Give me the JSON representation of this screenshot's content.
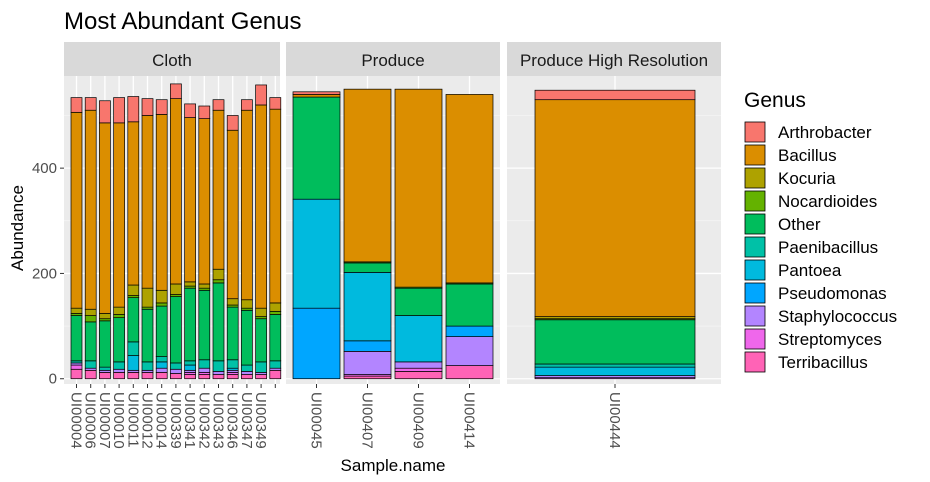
{
  "chart_data": {
    "type": "bar",
    "stacked": true,
    "title": "Most Abundant Genus",
    "xlabel": "Sample.name",
    "ylabel": "Abundance",
    "ylim": [
      -10,
      575
    ],
    "yticks": [
      0,
      200,
      400
    ],
    "legend": {
      "title": "Genus",
      "placement": "right",
      "entries": [
        {
          "name": "Arthrobacter",
          "color": "#F8766D"
        },
        {
          "name": "Bacillus",
          "color": "#DB8E00"
        },
        {
          "name": "Kocuria",
          "color": "#AEA200"
        },
        {
          "name": "Nocardioides",
          "color": "#64B200"
        },
        {
          "name": "Other",
          "color": "#00BD5C"
        },
        {
          "name": "Paenibacillus",
          "color": "#00C1A7"
        },
        {
          "name": "Pantoea",
          "color": "#00BADE"
        },
        {
          "name": "Pseudomonas",
          "color": "#00A6FF"
        },
        {
          "name": "Staphylococcus",
          "color": "#B385FF"
        },
        {
          "name": "Streptomyces",
          "color": "#EF67EB"
        },
        {
          "name": "Terribacillus",
          "color": "#FF63B6"
        }
      ]
    },
    "stack_order_bottom_to_top": [
      "Terribacillus",
      "Streptomyces",
      "Staphylococcus",
      "Pseudomonas",
      "Pantoea",
      "Paenibacillus",
      "Other",
      "Nocardioides",
      "Kocuria",
      "Bacillus",
      "Arthrobacter"
    ],
    "facets": [
      {
        "name": "Cloth",
        "samples": [
          {
            "name": "UI00004",
            "values": {
              "Terribacillus": 18,
              "Streptomyces": 8,
              "Staphylococcus": 4,
              "Pseudomonas": 0,
              "Pantoea": 0,
              "Paenibacillus": 4,
              "Other": 86,
              "Nocardioides": 4,
              "Kocuria": 10,
              "Bacillus": 372,
              "Arthrobacter": 28
            }
          },
          {
            "name": "UI00006",
            "values": {
              "Terribacillus": 16,
              "Streptomyces": 0,
              "Staphylococcus": 4,
              "Pseudomonas": 0,
              "Pantoea": 0,
              "Paenibacillus": 14,
              "Other": 74,
              "Nocardioides": 12,
              "Kocuria": 12,
              "Bacillus": 378,
              "Arthrobacter": 24
            }
          },
          {
            "name": "UI00007",
            "values": {
              "Terribacillus": 12,
              "Streptomyces": 0,
              "Staphylococcus": 4,
              "Pseudomonas": 0,
              "Pantoea": 0,
              "Paenibacillus": 6,
              "Other": 88,
              "Nocardioides": 4,
              "Kocuria": 10,
              "Bacillus": 362,
              "Arthrobacter": 42
            }
          },
          {
            "name": "UI00010",
            "values": {
              "Terribacillus": 12,
              "Streptomyces": 0,
              "Staphylococcus": 6,
              "Pseudomonas": 0,
              "Pantoea": 0,
              "Paenibacillus": 14,
              "Other": 84,
              "Nocardioides": 6,
              "Kocuria": 14,
              "Bacillus": 350,
              "Arthrobacter": 48
            }
          },
          {
            "name": "UI00011",
            "values": {
              "Terribacillus": 12,
              "Streptomyces": 0,
              "Staphylococcus": 4,
              "Pseudomonas": 0,
              "Pantoea": 28,
              "Paenibacillus": 26,
              "Other": 84,
              "Nocardioides": 4,
              "Kocuria": 20,
              "Bacillus": 310,
              "Arthrobacter": 48
            }
          },
          {
            "name": "UI00012",
            "values": {
              "Terribacillus": 12,
              "Streptomyces": 0,
              "Staphylococcus": 4,
              "Pseudomonas": 0,
              "Pantoea": 0,
              "Paenibacillus": 16,
              "Other": 100,
              "Nocardioides": 4,
              "Kocuria": 36,
              "Bacillus": 328,
              "Arthrobacter": 32
            }
          },
          {
            "name": "UI00014",
            "values": {
              "Terribacillus": 12,
              "Streptomyces": 0,
              "Staphylococcus": 8,
              "Pseudomonas": 0,
              "Pantoea": 12,
              "Paenibacillus": 10,
              "Other": 96,
              "Nocardioides": 6,
              "Kocuria": 24,
              "Bacillus": 334,
              "Arthrobacter": 28
            }
          },
          {
            "name": "UI00339",
            "values": {
              "Terribacillus": 10,
              "Streptomyces": 0,
              "Staphylococcus": 8,
              "Pseudomonas": 0,
              "Pantoea": 0,
              "Paenibacillus": 12,
              "Other": 126,
              "Nocardioides": 4,
              "Kocuria": 20,
              "Bacillus": 352,
              "Arthrobacter": 28
            }
          },
          {
            "name": "UI00341",
            "values": {
              "Terribacillus": 8,
              "Streptomyces": 4,
              "Staphylococcus": 4,
              "Pseudomonas": 0,
              "Pantoea": 10,
              "Paenibacillus": 8,
              "Other": 138,
              "Nocardioides": 4,
              "Kocuria": 8,
              "Bacillus": 312,
              "Arthrobacter": 26
            }
          },
          {
            "name": "UI00342",
            "values": {
              "Terribacillus": 8,
              "Streptomyces": 4,
              "Staphylococcus": 8,
              "Pseudomonas": 0,
              "Pantoea": 0,
              "Paenibacillus": 16,
              "Other": 132,
              "Nocardioides": 4,
              "Kocuria": 8,
              "Bacillus": 314,
              "Arthrobacter": 24
            }
          },
          {
            "name": "UI00343",
            "values": {
              "Terribacillus": 8,
              "Streptomyces": 0,
              "Staphylococcus": 6,
              "Pseudomonas": 0,
              "Pantoea": 0,
              "Paenibacillus": 20,
              "Other": 148,
              "Nocardioides": 6,
              "Kocuria": 20,
              "Bacillus": 302,
              "Arthrobacter": 20
            }
          },
          {
            "name": "UI00346",
            "values": {
              "Terribacillus": 8,
              "Streptomyces": 4,
              "Staphylococcus": 4,
              "Pseudomonas": 0,
              "Pantoea": 4,
              "Paenibacillus": 16,
              "Other": 100,
              "Nocardioides": 4,
              "Kocuria": 12,
              "Bacillus": 320,
              "Arthrobacter": 28
            }
          },
          {
            "name": "UI00347",
            "values": {
              "Terribacillus": 8,
              "Streptomyces": 0,
              "Staphylococcus": 6,
              "Pseudomonas": 0,
              "Pantoea": 0,
              "Paenibacillus": 12,
              "Other": 104,
              "Nocardioides": 4,
              "Kocuria": 16,
              "Bacillus": 360,
              "Arthrobacter": 20
            }
          },
          {
            "name": "UI00349",
            "values": {
              "Terribacillus": 8,
              "Streptomyces": 0,
              "Staphylococcus": 4,
              "Pseudomonas": 0,
              "Pantoea": 0,
              "Paenibacillus": 20,
              "Other": 82,
              "Nocardioides": 4,
              "Kocuria": 16,
              "Bacillus": 386,
              "Arthrobacter": 38
            }
          },
          {
            "name": "",
            "values": {
              "Terribacillus": 16,
              "Streptomyces": 0,
              "Staphylococcus": 4,
              "Pseudomonas": 0,
              "Pantoea": 0,
              "Paenibacillus": 14,
              "Other": 88,
              "Nocardioides": 6,
              "Kocuria": 16,
              "Bacillus": 368,
              "Arthrobacter": 22
            }
          }
        ]
      },
      {
        "name": "Produce",
        "samples": [
          {
            "name": "UI00045",
            "values": {
              "Terribacillus": 0,
              "Streptomyces": 0,
              "Staphylococcus": 0,
              "Pseudomonas": 134,
              "Pantoea": 207,
              "Paenibacillus": 0,
              "Other": 194,
              "Nocardioides": 0,
              "Kocuria": 0,
              "Bacillus": 5,
              "Arthrobacter": 5
            }
          },
          {
            "name": "UI00407",
            "values": {
              "Terribacillus": 5,
              "Streptomyces": 3,
              "Staphylococcus": 44,
              "Pseudomonas": 20,
              "Pantoea": 130,
              "Paenibacillus": 0,
              "Other": 18,
              "Nocardioides": 2,
              "Kocuria": 0,
              "Bacillus": 328,
              "Arthrobacter": 0
            }
          },
          {
            "name": "UI00409",
            "values": {
              "Terribacillus": 14,
              "Streptomyces": 6,
              "Staphylococcus": 12,
              "Pseudomonas": 0,
              "Pantoea": 88,
              "Paenibacillus": 0,
              "Other": 52,
              "Nocardioides": 2,
              "Kocuria": 0,
              "Bacillus": 376,
              "Arthrobacter": 0
            }
          },
          {
            "name": "UI00414",
            "values": {
              "Terribacillus": 25,
              "Streptomyces": 0,
              "Staphylococcus": 55,
              "Pseudomonas": 20,
              "Pantoea": 0,
              "Paenibacillus": 0,
              "Other": 80,
              "Nocardioides": 2,
              "Kocuria": 0,
              "Bacillus": 358,
              "Arthrobacter": 0
            }
          }
        ]
      },
      {
        "name": "Produce High Resolution",
        "samples": [
          {
            "name": "UI00444",
            "values": {
              "Terribacillus": 0,
              "Streptomyces": 2,
              "Staphylococcus": 4,
              "Pseudomonas": 0,
              "Pantoea": 16,
              "Paenibacillus": 6,
              "Other": 84,
              "Nocardioides": 2,
              "Kocuria": 4,
              "Bacillus": 412,
              "Arthrobacter": 18
            }
          }
        ]
      }
    ],
    "grid": true
  }
}
